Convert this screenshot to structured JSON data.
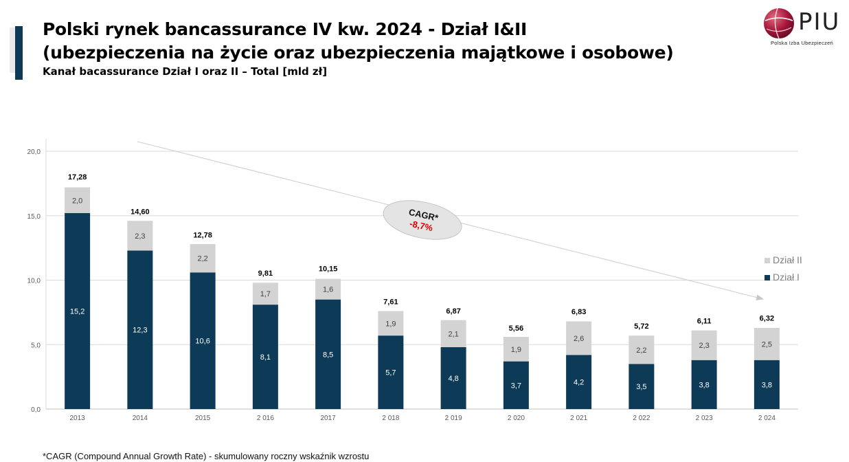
{
  "header": {
    "title_line1": "Polski rynek bancassurance IV kw. 2024 - Dział I&II",
    "title_line2": "(ubezpieczenia na życie oraz ubezpieczenia majątkowe i osobowe)",
    "subtitle": "Kanał bacassurance Dział I oraz II – Total [mld zł]"
  },
  "logo": {
    "name": "PIU",
    "subtitle": "Polska Izba Ubezpieczeń"
  },
  "colors": {
    "dzial_i": "#0d3a57",
    "dzial_ii": "#d3d3d3",
    "accent": "#0d3a57",
    "cagr": "#e00000"
  },
  "chart_data": {
    "type": "bar",
    "stacked": true,
    "categories": [
      "2013",
      "2014",
      "2015",
      "2 016",
      "2017",
      "2 018",
      "2 019",
      "2 020",
      "2 021",
      "2 022",
      "2 023",
      "2 024"
    ],
    "series": [
      {
        "name": "Dział I",
        "values": [
          15.2,
          12.3,
          10.6,
          8.1,
          8.5,
          5.7,
          4.8,
          3.7,
          4.2,
          3.5,
          3.8,
          3.8
        ],
        "labels": [
          "15,2",
          "12,3",
          "10,6",
          "8,1",
          "8,5",
          "5,7",
          "4,8",
          "3,7",
          "4,2",
          "3,5",
          "3,8",
          "3,8"
        ]
      },
      {
        "name": "Dział II",
        "values": [
          2.0,
          2.3,
          2.2,
          1.7,
          1.6,
          1.9,
          2.1,
          1.9,
          2.6,
          2.2,
          2.3,
          2.5
        ],
        "labels": [
          "2,0",
          "2,3",
          "2,2",
          "1,7",
          "1,6",
          "1,9",
          "2,1",
          "1,9",
          "2,6",
          "2,2",
          "2,3",
          "2,5"
        ]
      }
    ],
    "totals": [
      17.28,
      14.6,
      12.78,
      9.81,
      10.15,
      7.61,
      6.87,
      5.56,
      6.83,
      5.72,
      6.11,
      6.32
    ],
    "total_labels": [
      "17,28",
      "14,60",
      "12,78",
      "9,81",
      "10,15",
      "7,61",
      "6,87",
      "5,56",
      "6,83",
      "5,72",
      "6,11",
      "6,32"
    ],
    "ylim": [
      0,
      20
    ],
    "yticks": [
      0,
      5,
      10,
      15,
      20
    ],
    "ytick_labels": [
      "0,0",
      "5,0",
      "10,0",
      "15,0",
      "20,0"
    ],
    "grid": true,
    "legend_position": "right",
    "annotation": {
      "title": "CAGR*",
      "value": "-8,7%"
    }
  },
  "footnote": "*CAGR (Compound Annual Growth Rate) - skumulowany roczny wskaźnik wzrostu"
}
